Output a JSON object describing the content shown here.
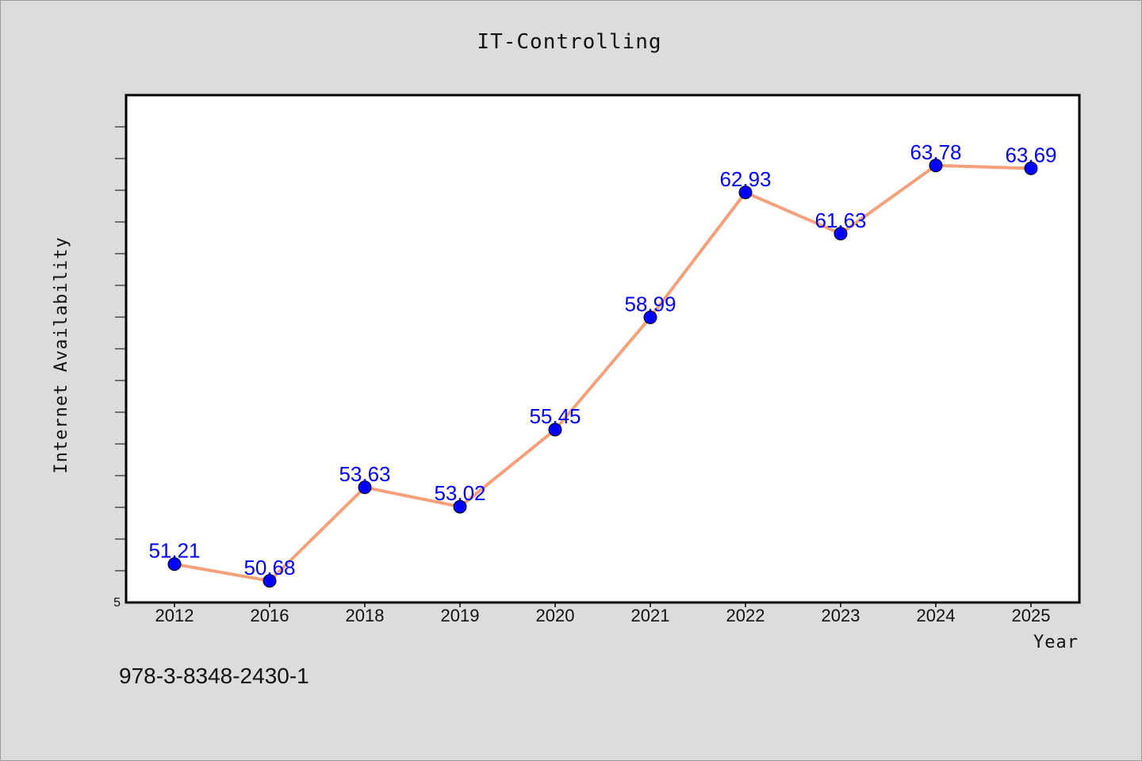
{
  "chart_data": {
    "type": "line",
    "title": "IT-Controlling",
    "xlabel": "Year",
    "ylabel": "Internet Availability",
    "categories": [
      "2012",
      "2016",
      "2018",
      "2019",
      "2020",
      "2021",
      "2022",
      "2023",
      "2024",
      "2025"
    ],
    "series": [
      {
        "values": [
          51.21,
          50.68,
          53.63,
          53.02,
          55.45,
          58.99,
          62.93,
          61.63,
          63.78,
          63.69
        ],
        "labels": [
          "51.21",
          "50.68",
          "53.63",
          "53.02",
          "55.45",
          "58.99",
          "62.93",
          "61.63",
          "63.78",
          "63.69"
        ],
        "line_color": "#f4a07a",
        "marker_color": "#0000ff"
      }
    ],
    "ylim": [
      50.0,
      66.0
    ],
    "ytick_label": "5",
    "grid": false,
    "legend": "none"
  },
  "footer": {
    "isbn": "978-3-8348-2430-1"
  }
}
